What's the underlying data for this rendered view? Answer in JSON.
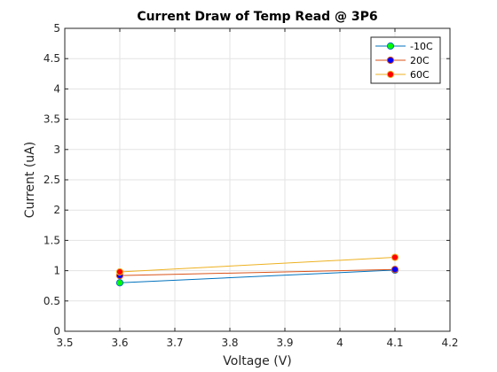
{
  "chart_data": {
    "type": "line",
    "title": "Current Draw of Temp Read @ 3P6",
    "xlabel": "Voltage (V)",
    "ylabel": "Current (uA)",
    "xlim": [
      3.5,
      4.2
    ],
    "ylim": [
      0,
      5
    ],
    "xticks": [
      "3.5",
      "3.6",
      "3.7",
      "3.8",
      "3.9",
      "4",
      "4.1",
      "4.2"
    ],
    "yticks": [
      "0",
      "0.5",
      "1",
      "1.5",
      "2",
      "2.5",
      "3",
      "3.5",
      "4",
      "4.5",
      "5"
    ],
    "grid": true,
    "legend_position": "top-right",
    "series": [
      {
        "name": "-10C",
        "x": [
          3.6,
          4.1
        ],
        "values": [
          0.8,
          1.01
        ],
        "line_color": "#0072BD",
        "marker_color": "#00ff00"
      },
      {
        "name": "20C",
        "x": [
          3.6,
          4.1
        ],
        "values": [
          0.92,
          1.02
        ],
        "line_color": "#D95319",
        "marker_color": "#0000ff"
      },
      {
        "name": "60C",
        "x": [
          3.6,
          4.1
        ],
        "values": [
          0.98,
          1.22
        ],
        "line_color": "#EDB120",
        "marker_color": "#ff0000"
      }
    ]
  }
}
